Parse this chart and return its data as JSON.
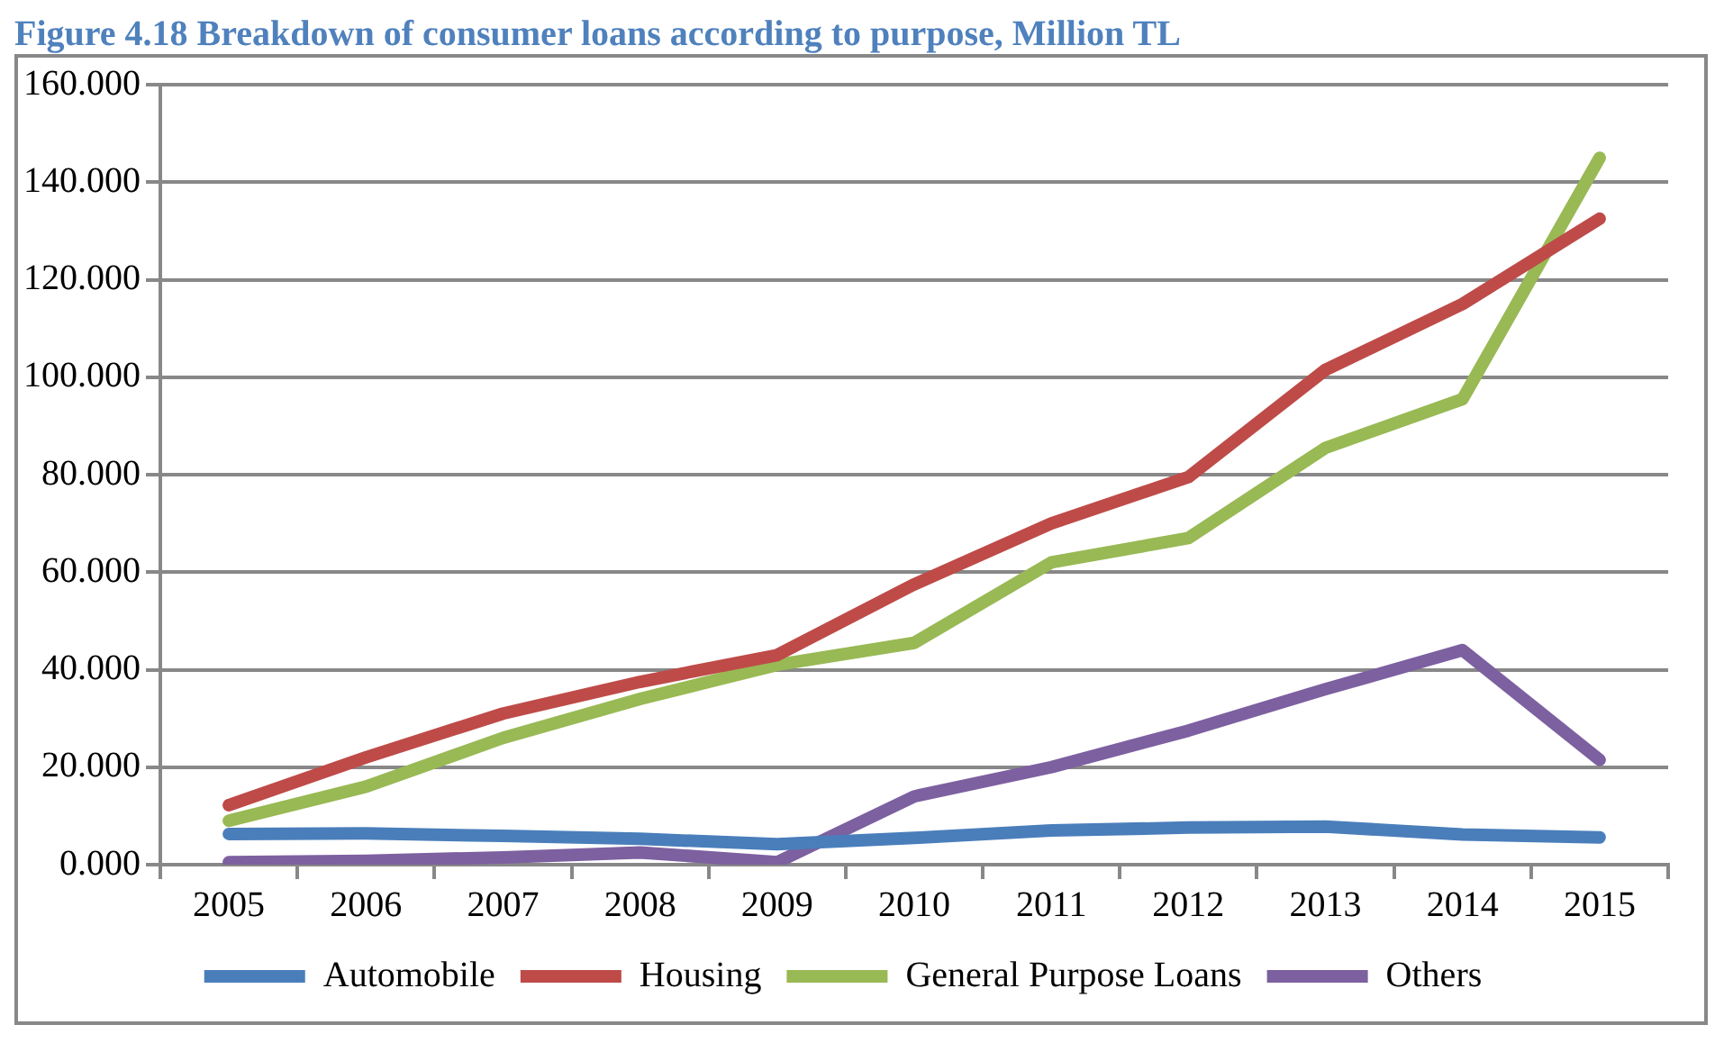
{
  "chart_data": {
    "type": "line",
    "title": "Figure 4.18 Breakdown of consumer loans according to purpose, Million TL",
    "categories": [
      "2005",
      "2006",
      "2007",
      "2008",
      "2009",
      "2010",
      "2011",
      "2012",
      "2013",
      "2014",
      "2015"
    ],
    "series": [
      {
        "name": "Automobile",
        "color": "#4a7ebb",
        "values": [
          6.3,
          6.4,
          5.9,
          5.3,
          4.2,
          5.5,
          7,
          7.6,
          7.8,
          6.2,
          5.6
        ]
      },
      {
        "name": "Housing",
        "color": "#be4b48",
        "values": [
          12.2,
          22,
          31,
          37.5,
          43,
          57.5,
          70,
          79.5,
          101.5,
          115,
          132.5
        ]
      },
      {
        "name": "General Purpose Loans",
        "color": "#98b954",
        "values": [
          9,
          16,
          26,
          34,
          41,
          45.5,
          62,
          67,
          85.5,
          95.5,
          145
        ]
      },
      {
        "name": "Others",
        "color": "#7d60a0",
        "values": [
          0.5,
          0.8,
          1.5,
          2.5,
          0.5,
          14,
          20,
          27.5,
          36,
          44,
          21.5
        ]
      }
    ],
    "ylim": [
      0,
      160
    ],
    "yticks": [
      {
        "value": 0,
        "label": "0.000"
      },
      {
        "value": 20,
        "label": "20.000"
      },
      {
        "value": 40,
        "label": "40.000"
      },
      {
        "value": 60,
        "label": "60.000"
      },
      {
        "value": 80,
        "label": "80.000"
      },
      {
        "value": 100,
        "label": "100.000"
      },
      {
        "value": 120,
        "label": "120.000"
      },
      {
        "value": 140,
        "label": "140.000"
      },
      {
        "value": 160,
        "label": "160.000"
      }
    ],
    "grid": "y",
    "legend": "bottom",
    "marker": "none",
    "line_style": "solid"
  }
}
